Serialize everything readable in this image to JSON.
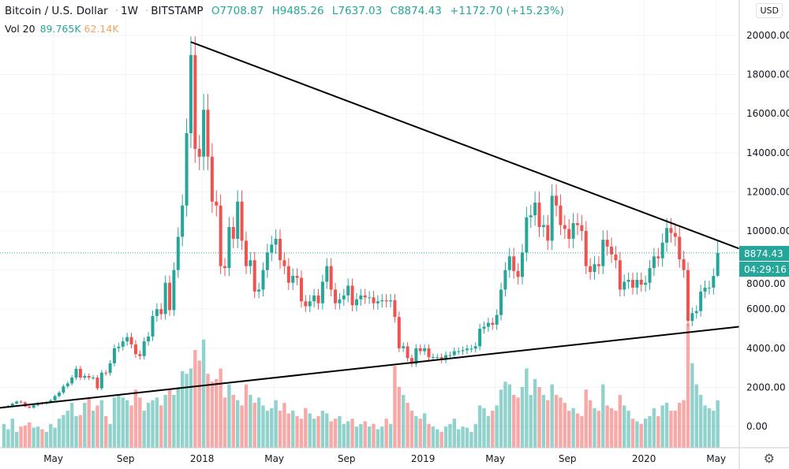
{
  "header": {
    "symbol": "Bitcoin / U.S. Dollar",
    "interval": "1W",
    "exchange": "BITSTAMP",
    "open": "O7708.87",
    "high": "H9485.26",
    "low": "L7637.03",
    "close": "C8874.43",
    "change": "+1172.70 (+15.23%)"
  },
  "volume_legend": {
    "label": "Vol 20",
    "value": "89.765K",
    "ma": "62.14K"
  },
  "currency_label": "USD",
  "last_price_label": "8874.43",
  "countdown_label": "04:29:16",
  "settings_icon": "gear-icon",
  "colors": {
    "up": "#26a69a",
    "down": "#ef5350",
    "trendline": "#000000",
    "ma": "#f7a35c"
  },
  "chart_data": {
    "type": "candlestick",
    "title": "Bitcoin / U.S. Dollar · 1W · BITSTAMP",
    "y_ticks": [
      "20000.00",
      "18000.00",
      "16000.00",
      "14000.00",
      "12000.00",
      "10000.00",
      "8000.00",
      "6000.00",
      "4000.00",
      "2000.00",
      "0.00"
    ],
    "y_tick_values": [
      20000,
      18000,
      16000,
      14000,
      12000,
      10000,
      8000,
      6000,
      4000,
      2000,
      0
    ],
    "ylim": [
      0,
      20000
    ],
    "x_ticks": [
      "May",
      "Sep",
      "2018",
      "May",
      "Sep",
      "2019",
      "May",
      "Sep",
      "2020",
      "May"
    ],
    "x_tick_weeks": [
      12,
      29,
      47,
      64,
      81,
      99,
      116,
      133,
      151,
      168
    ],
    "first_week": "2017-02-06",
    "grid": true,
    "last_candle": {
      "open": 7708.87,
      "high": 9485.26,
      "low": 7637.03,
      "close": 8874.43
    },
    "closes": [
      1000,
      1050,
      1170,
      1270,
      1230,
      1020,
      960,
      1080,
      1190,
      1170,
      1240,
      1340,
      1550,
      1730,
      2050,
      2200,
      2500,
      2950,
      2500,
      2580,
      2500,
      2500,
      1950,
      2750,
      2740,
      3230,
      4000,
      4080,
      4350,
      4570,
      4200,
      3700,
      3600,
      4350,
      4600,
      5650,
      6000,
      5750,
      7350,
      5950,
      8000,
      9700,
      11300,
      15000,
      19000,
      14200,
      13800,
      16200,
      13800,
      11500,
      11300,
      8200,
      8100,
      10200,
      9600,
      11500,
      9500,
      8200,
      8500,
      6900,
      7000,
      8000,
      8900,
      9300,
      9600,
      8500,
      8200,
      7350,
      7700,
      7600,
      6400,
      6150,
      6400,
      6700,
      6300,
      7400,
      8200,
      7000,
      6300,
      6500,
      6700,
      7200,
      6200,
      6500,
      6700,
      6600,
      6600,
      6300,
      6400,
      6450,
      6400,
      6450,
      5600,
      4000,
      4100,
      3500,
      3200,
      4000,
      3850,
      4000,
      3550,
      3550,
      3550,
      3400,
      3650,
      3650,
      3850,
      3850,
      3900,
      3980,
      3980,
      4100,
      5000,
      5100,
      5300,
      5200,
      5700,
      7000,
      8000,
      8700,
      7950,
      7650,
      8900,
      10700,
      10800,
      11450,
      10200,
      10300,
      9500,
      11800,
      11300,
      10300,
      10100,
      9600,
      10400,
      10300,
      10000,
      8200,
      7900,
      8300,
      8200,
      9550,
      9200,
      8800,
      8500,
      7000,
      7400,
      7500,
      7100,
      7500,
      7250,
      7350,
      8100,
      8700,
      8600,
      9400,
      10150,
      9900,
      9700,
      8550,
      8000,
      5400,
      5800,
      5900,
      6900,
      7100,
      7100,
      7700,
      8874.43
    ],
    "volumes_k": [
      45,
      35,
      55,
      30,
      40,
      42,
      48,
      38,
      40,
      35,
      30,
      45,
      38,
      55,
      62,
      70,
      85,
      60,
      62,
      85,
      95,
      70,
      80,
      90,
      60,
      45,
      95,
      100,
      95,
      90,
      80,
      110,
      95,
      70,
      85,
      90,
      95,
      80,
      100,
      110,
      100,
      115,
      145,
      140,
      150,
      185,
      165,
      205,
      140,
      125,
      130,
      150,
      95,
      120,
      100,
      90,
      80,
      120,
      100,
      85,
      95,
      80,
      70,
      75,
      90,
      70,
      85,
      65,
      70,
      60,
      55,
      75,
      65,
      55,
      60,
      70,
      65,
      50,
      55,
      60,
      45,
      50,
      55,
      40,
      45,
      50,
      40,
      45,
      35,
      40,
      55,
      45,
      155,
      115,
      100,
      85,
      70,
      60,
      55,
      65,
      45,
      40,
      35,
      30,
      40,
      45,
      55,
      35,
      40,
      38,
      30,
      45,
      80,
      75,
      60,
      70,
      80,
      110,
      125,
      120,
      100,
      95,
      115,
      150,
      100,
      130,
      115,
      100,
      90,
      120,
      100,
      95,
      85,
      70,
      75,
      65,
      60,
      110,
      90,
      75,
      70,
      120,
      80,
      75,
      70,
      100,
      80,
      70,
      55,
      50,
      45,
      55,
      60,
      75,
      60,
      80,
      85,
      70,
      70,
      85,
      90,
      235,
      160,
      120,
      100,
      80,
      75,
      70,
      89.765
    ],
    "trendlines": [
      {
        "from": {
          "week": 44,
          "price": 19666
        },
        "to": {
          "week": 173,
          "price": 9100
        }
      },
      {
        "from": {
          "week": -1,
          "price": 950
        },
        "to": {
          "week": 173,
          "price": 5100
        }
      }
    ]
  }
}
